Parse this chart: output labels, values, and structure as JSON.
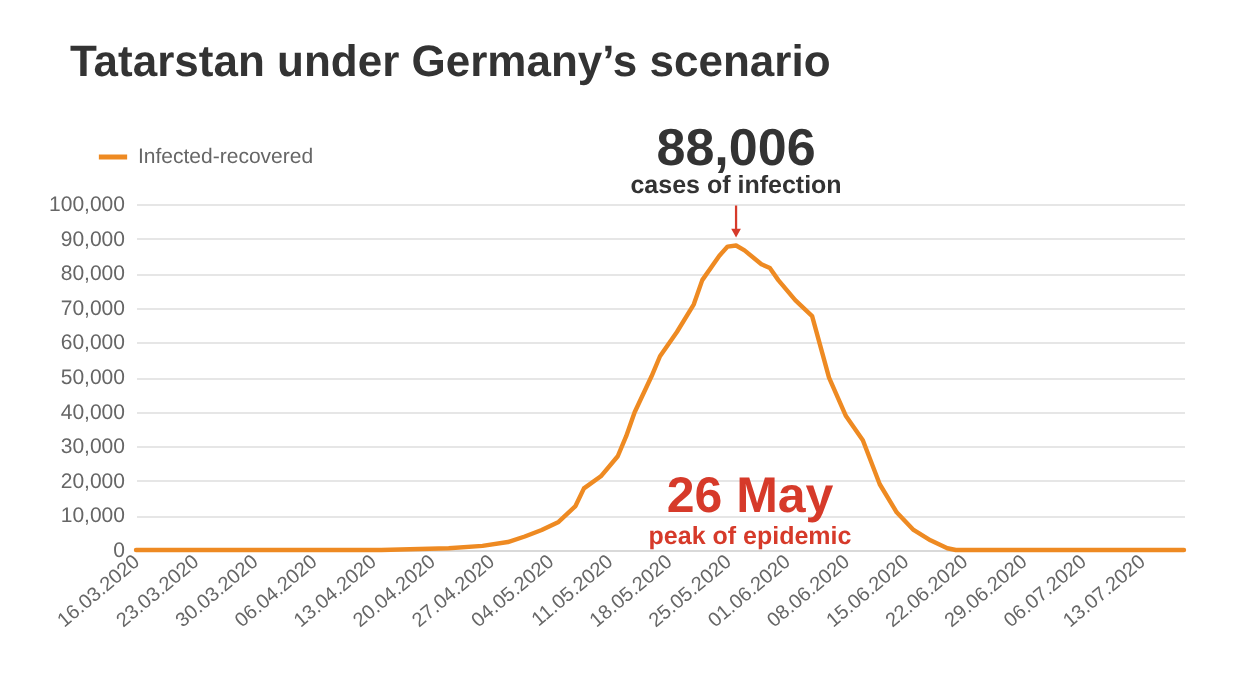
{
  "chart_data": {
    "type": "line",
    "title": "Tatarstan under Germany’s scenario",
    "x": [
      "2020-03-16",
      "2020-04-14",
      "2020-04-22",
      "2020-04-26",
      "2020-04-29",
      "2020-05-01",
      "2020-05-03",
      "2020-05-05",
      "2020-05-07",
      "2020-05-08",
      "2020-05-10",
      "2020-05-12",
      "2020-05-13",
      "2020-05-14",
      "2020-05-16",
      "2020-05-17",
      "2020-05-19",
      "2020-05-21",
      "2020-05-22",
      "2020-05-24",
      "2020-05-25",
      "2020-05-26",
      "2020-05-27",
      "2020-05-29",
      "2020-05-30",
      "2020-05-31",
      "2020-06-02",
      "2020-06-04",
      "2020-06-06",
      "2020-06-08",
      "2020-06-10",
      "2020-06-12",
      "2020-06-14",
      "2020-06-16",
      "2020-06-18",
      "2020-06-20",
      "2020-06-21",
      "2020-07-18"
    ],
    "series": [
      {
        "name": "Infected-recovered",
        "color": "#ee8a22",
        "values": [
          0,
          0,
          500,
          1200,
          2300,
          3900,
          5800,
          8100,
          12700,
          17800,
          21300,
          27100,
          32900,
          39800,
          50200,
          56000,
          63000,
          71000,
          78000,
          85000,
          87700,
          88006,
          86600,
          82600,
          81500,
          78000,
          72200,
          67600,
          49800,
          38700,
          31700,
          19000,
          10900,
          5800,
          2800,
          500,
          0,
          0
        ]
      }
    ],
    "xlim": [
      "2020-03-16",
      "2020-07-18"
    ],
    "xticks": [
      {
        "value": "2020-03-16",
        "label": "16.03.2020"
      },
      {
        "value": "2020-03-23",
        "label": "23.03.2020"
      },
      {
        "value": "2020-03-30",
        "label": "30.03.2020"
      },
      {
        "value": "2020-04-06",
        "label": "06.04.2020"
      },
      {
        "value": "2020-04-13",
        "label": "13.04.2020"
      },
      {
        "value": "2020-04-20",
        "label": "20.04.2020"
      },
      {
        "value": "2020-04-27",
        "label": "27.04.2020"
      },
      {
        "value": "2020-05-04",
        "label": "04.05.2020"
      },
      {
        "value": "2020-05-11",
        "label": "11.05.2020"
      },
      {
        "value": "2020-05-18",
        "label": "18.05.2020"
      },
      {
        "value": "2020-05-25",
        "label": "25.05.2020"
      },
      {
        "value": "2020-06-01",
        "label": "01.06.2020"
      },
      {
        "value": "2020-06-08",
        "label": "08.06.2020"
      },
      {
        "value": "2020-06-15",
        "label": "15.06.2020"
      },
      {
        "value": "2020-06-22",
        "label": "22.06.2020"
      },
      {
        "value": "2020-06-29",
        "label": "29.06.2020"
      },
      {
        "value": "2020-07-06",
        "label": "06.07.2020"
      },
      {
        "value": "2020-07-13",
        "label": "13.07.2020"
      }
    ],
    "ylim": [
      0,
      100000
    ],
    "yticks": [
      0,
      {
        "value": 10000,
        "label": "10,000"
      },
      {
        "value": 20000,
        "label": "20,000"
      },
      {
        "value": 30000,
        "label": "30,000"
      },
      {
        "value": 40000,
        "label": "40,000"
      },
      {
        "value": 50000,
        "label": "50,000"
      },
      {
        "value": 60000,
        "label": "60,000"
      },
      {
        "value": 70000,
        "label": "70,000"
      },
      {
        "value": 80000,
        "label": "80,000"
      },
      {
        "value": 90000,
        "label": "90,000"
      },
      {
        "value": 100000,
        "label": "100,000"
      }
    ],
    "grid": "y",
    "legend": "top left",
    "marker": "none",
    "line_style": "solid",
    "annotations": [
      {
        "text": "88,006",
        "x": "2020-05-26",
        "y": 88006
      },
      {
        "text": "cases of infection",
        "x": "2020-05-26",
        "y": 88006
      },
      "26 May",
      "peak of epidemic"
    ]
  }
}
